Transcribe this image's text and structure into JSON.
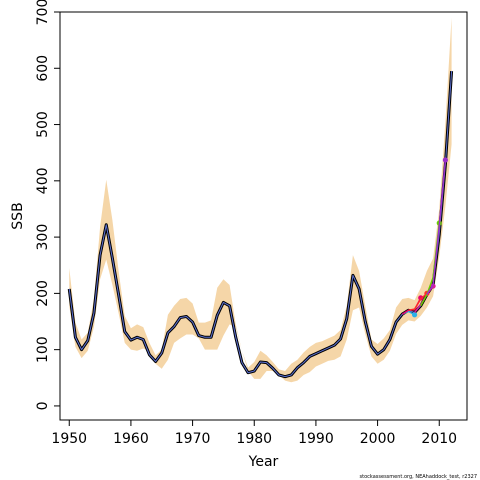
{
  "chart_data": {
    "type": "line",
    "xlabel": "Year",
    "ylabel": "SSB",
    "xlim": [
      1948.5,
      2014.5
    ],
    "ylim": [
      -25,
      700
    ],
    "xticks": [
      1950,
      1960,
      1970,
      1980,
      1990,
      2000,
      2010
    ],
    "yticks": [
      0,
      100,
      200,
      300,
      400,
      500,
      600,
      700
    ],
    "grid": false,
    "legend": "none",
    "footnote": "stockassessment.org, NEAhaddock_test, r2327",
    "colors": {
      "band": "#f5d6a8",
      "line": "#000000",
      "inner_line": "#5b6fd0",
      "retro": [
        "#2ab0e8",
        "#e8006e",
        "#ff2a2a",
        "#d81b9b",
        "#66cc00",
        "#9b30c8"
      ]
    },
    "band": {
      "x": [
        1950,
        1951,
        1952,
        1953,
        1954,
        1955,
        1956,
        1957,
        1958,
        1959,
        1960,
        1961,
        1962,
        1963,
        1964,
        1965,
        1966,
        1967,
        1968,
        1969,
        1970,
        1971,
        1972,
        1973,
        1974,
        1975,
        1976,
        1977,
        1978,
        1979,
        1980,
        1981,
        1982,
        1983,
        1984,
        1985,
        1986,
        1987,
        1988,
        1989,
        1990,
        1991,
        1992,
        1993,
        1994,
        1995,
        1996,
        1997,
        1998,
        1999,
        2000,
        2001,
        2002,
        2003,
        2004,
        2005,
        2006,
        2007,
        2008,
        2009,
        2010,
        2011,
        2012
      ],
      "low": [
        178,
        105,
        85,
        98,
        140,
        225,
        260,
        215,
        165,
        112,
        100,
        98,
        102,
        98,
        75,
        66,
        82,
        112,
        120,
        127,
        127,
        120,
        100,
        100,
        100,
        125,
        145,
        140,
        98,
        62,
        48,
        48,
        62,
        62,
        55,
        45,
        42,
        45,
        55,
        60,
        70,
        75,
        80,
        82,
        88,
        118,
        170,
        175,
        128,
        88,
        75,
        82,
        98,
        128,
        144,
        152,
        150,
        160,
        175,
        195,
        265,
        355,
        465
      ],
      "high": [
        245,
        148,
        118,
        130,
        190,
        318,
        402,
        330,
        240,
        160,
        138,
        145,
        140,
        112,
        90,
        100,
        162,
        178,
        190,
        192,
        182,
        148,
        148,
        152,
        210,
        225,
        215,
        145,
        98,
        68,
        78,
        98,
        90,
        78,
        65,
        62,
        75,
        82,
        95,
        105,
        112,
        115,
        120,
        125,
        135,
        178,
        268,
        240,
        178,
        118,
        110,
        120,
        135,
        175,
        190,
        192,
        188,
        210,
        240,
        262,
        350,
        505,
        690
      ]
    },
    "series": [
      {
        "x": [
          1950,
          1951,
          1952,
          1953,
          1954,
          1955,
          1956,
          1957,
          1958,
          1959,
          1960,
          1961,
          1962,
          1963,
          1964,
          1965,
          1966,
          1967,
          1968,
          1969,
          1970,
          1971,
          1972,
          1973,
          1974,
          1975,
          1976,
          1977,
          1978,
          1979,
          1980,
          1981,
          1982,
          1983,
          1984,
          1985,
          1986,
          1987,
          1988,
          1989,
          1990,
          1991,
          1992,
          1993,
          1994,
          1995,
          1996,
          1997,
          1998,
          1999,
          2000,
          2001,
          2002,
          2003,
          2004,
          2005,
          2006,
          2007,
          2008,
          2009,
          2010,
          2011,
          2012
        ],
        "values": [
          208,
          122,
          100,
          116,
          165,
          268,
          322,
          262,
          198,
          132,
          117,
          122,
          118,
          91,
          79,
          94,
          130,
          141,
          157,
          159,
          149,
          125,
          122,
          122,
          161,
          184,
          178,
          122,
          77,
          59,
          62,
          78,
          77,
          67,
          55,
          52,
          55,
          68,
          77,
          88,
          93,
          98,
          103,
          108,
          119,
          155,
          232,
          208,
          150,
          106,
          92,
          100,
          118,
          149,
          163,
          170,
          166,
          178,
          198,
          215,
          305,
          430,
          595
        ]
      }
    ],
    "retro_peels": [
      {
        "x": [
          2004,
          2005,
          2006
        ],
        "values": [
          163,
          168,
          162
        ]
      },
      {
        "x": [
          2004,
          2005,
          2006,
          2007
        ],
        "values": [
          163,
          170,
          171,
          192
        ]
      },
      {
        "x": [
          2005,
          2006,
          2007,
          2008
        ],
        "values": [
          170,
          172,
          190,
          200
        ]
      },
      {
        "x": [
          2006,
          2007,
          2008,
          2009
        ],
        "values": [
          166,
          180,
          198,
          213
        ]
      },
      {
        "x": [
          2007,
          2008,
          2009,
          2010
        ],
        "values": [
          178,
          198,
          228,
          325
        ]
      },
      {
        "x": [
          2008,
          2009,
          2010,
          2011
        ],
        "values": [
          198,
          215,
          320,
          437
        ]
      }
    ]
  }
}
